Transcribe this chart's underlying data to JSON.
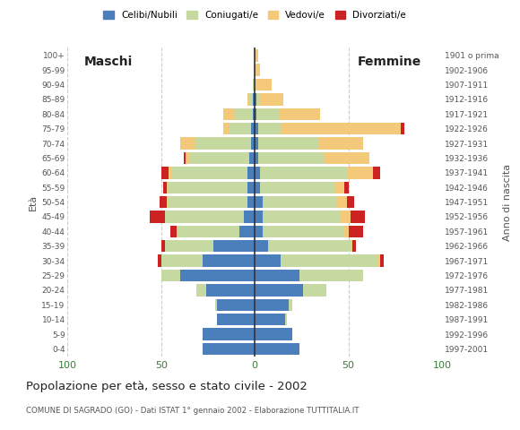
{
  "age_groups": [
    "0-4",
    "5-9",
    "10-14",
    "15-19",
    "20-24",
    "25-29",
    "30-34",
    "35-39",
    "40-44",
    "45-49",
    "50-54",
    "55-59",
    "60-64",
    "65-69",
    "70-74",
    "75-79",
    "80-84",
    "85-89",
    "90-94",
    "95-99",
    "100+"
  ],
  "birth_years": [
    "1997-2001",
    "1992-1996",
    "1987-1991",
    "1982-1986",
    "1977-1981",
    "1972-1976",
    "1967-1971",
    "1962-1966",
    "1957-1961",
    "1952-1956",
    "1947-1951",
    "1942-1946",
    "1937-1941",
    "1932-1936",
    "1927-1931",
    "1922-1926",
    "1917-1921",
    "1912-1916",
    "1907-1911",
    "1902-1906",
    "1901 o prima"
  ],
  "colors": {
    "celibe": "#4a7fbb",
    "coniugato": "#c5d9a0",
    "vedovo": "#f5c97a",
    "divorziato": "#cc2222"
  },
  "male_celibe": [
    28,
    28,
    20,
    20,
    26,
    40,
    28,
    22,
    8,
    6,
    4,
    4,
    4,
    3,
    2,
    2,
    1,
    1,
    0,
    0,
    0
  ],
  "male_coniugato": [
    0,
    0,
    0,
    1,
    5,
    10,
    22,
    26,
    34,
    42,
    42,
    42,
    40,
    32,
    30,
    12,
    10,
    2,
    1,
    0,
    0
  ],
  "male_vedovo": [
    0,
    0,
    0,
    0,
    0,
    0,
    0,
    0,
    0,
    0,
    1,
    1,
    2,
    2,
    8,
    3,
    6,
    1,
    0,
    0,
    0
  ],
  "male_divorziato": [
    0,
    0,
    0,
    0,
    0,
    0,
    2,
    2,
    3,
    8,
    4,
    2,
    4,
    1,
    0,
    0,
    0,
    0,
    0,
    0,
    0
  ],
  "female_celibe": [
    24,
    20,
    16,
    18,
    26,
    24,
    14,
    7,
    4,
    4,
    4,
    3,
    3,
    2,
    2,
    2,
    1,
    1,
    0,
    0,
    0
  ],
  "female_coniugato": [
    0,
    0,
    1,
    2,
    12,
    34,
    52,
    44,
    44,
    42,
    40,
    40,
    46,
    35,
    32,
    12,
    12,
    2,
    1,
    0,
    0
  ],
  "female_vedovo": [
    0,
    0,
    0,
    0,
    0,
    0,
    1,
    1,
    2,
    5,
    5,
    5,
    14,
    24,
    24,
    64,
    22,
    12,
    8,
    3,
    2
  ],
  "female_divorziato": [
    0,
    0,
    0,
    0,
    0,
    0,
    2,
    2,
    8,
    8,
    4,
    2,
    4,
    0,
    0,
    2,
    0,
    0,
    0,
    0,
    0
  ],
  "title": "Popolazione per età, sesso e stato civile - 2002",
  "subtitle": "COMUNE DI SAGRADO (GO) - Dati ISTAT 1° gennaio 2002 - Elaborazione TUTTITALIA.IT",
  "label_maschi": "Maschi",
  "label_femmine": "Femmine",
  "ylabel_left": "Età",
  "ylabel_right": "Anno di nascita",
  "xlim": 100,
  "background_color": "#ffffff",
  "grid_color": "#cccccc",
  "legend_labels": [
    "Celibi/Nubili",
    "Coniugati/e",
    "Vedovi/e",
    "Divorziati/e"
  ]
}
